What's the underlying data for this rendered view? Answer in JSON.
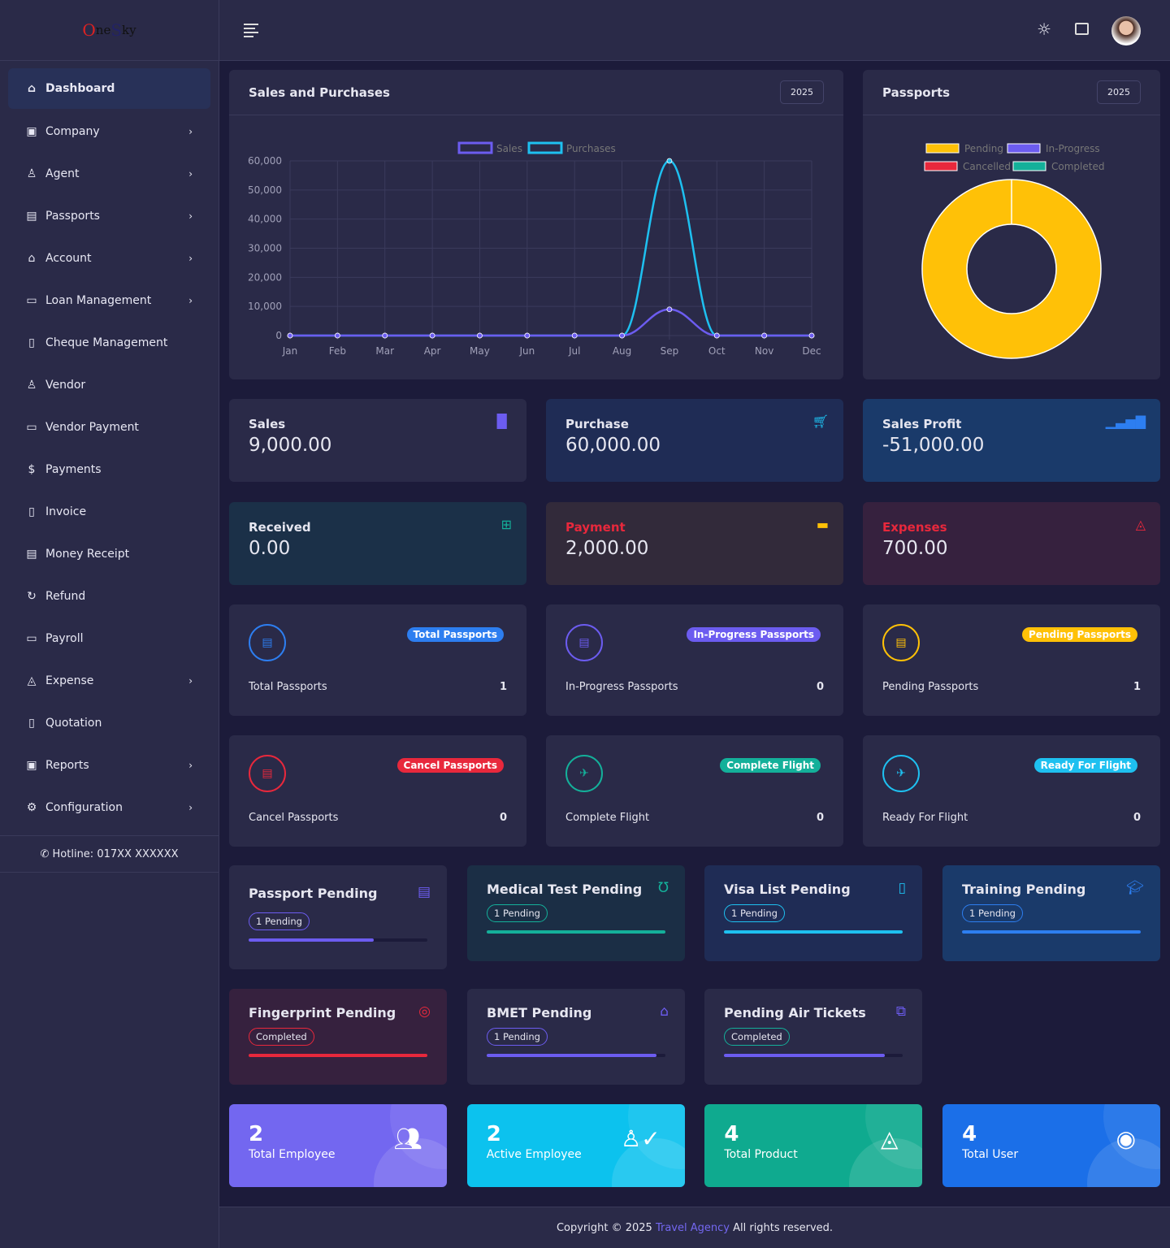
{
  "logo": "OneSky",
  "sidebar": {
    "items": [
      {
        "label": "Dashboard",
        "icon": "home-icon",
        "glyph": "⌂",
        "chev": false
      },
      {
        "label": "Company",
        "icon": "briefcase-icon",
        "glyph": "▣",
        "chev": true
      },
      {
        "label": "Agent",
        "icon": "user-icon",
        "glyph": "♙",
        "chev": true
      },
      {
        "label": "Passports",
        "icon": "passport-icon",
        "glyph": "▤",
        "chev": true
      },
      {
        "label": "Account",
        "icon": "bank-icon",
        "glyph": "⌂",
        "chev": true
      },
      {
        "label": "Loan Management",
        "icon": "money-icon",
        "glyph": "▭",
        "chev": true
      },
      {
        "label": "Cheque Management",
        "icon": "document-icon",
        "glyph": "▯",
        "chev": false
      },
      {
        "label": "Vendor",
        "icon": "users-icon",
        "glyph": "♙",
        "chev": false
      },
      {
        "label": "Vendor Payment",
        "icon": "money-icon",
        "glyph": "▭",
        "chev": false
      },
      {
        "label": "Payments",
        "icon": "dollar-icon",
        "glyph": "$",
        "chev": false
      },
      {
        "label": "Invoice",
        "icon": "document-icon",
        "glyph": "▯",
        "chev": false
      },
      {
        "label": "Money Receipt",
        "icon": "receipt-icon",
        "glyph": "▤",
        "chev": false
      },
      {
        "label": "Refund",
        "icon": "refresh-icon",
        "glyph": "↻",
        "chev": false
      },
      {
        "label": "Payroll",
        "icon": "wallet-icon",
        "glyph": "▭",
        "chev": false
      },
      {
        "label": "Expense",
        "icon": "bag-icon",
        "glyph": "◬",
        "chev": true
      },
      {
        "label": "Quotation",
        "icon": "document-icon",
        "glyph": "▯",
        "chev": false
      },
      {
        "label": "Reports",
        "icon": "excel-icon",
        "glyph": "▣",
        "chev": true
      },
      {
        "label": "Configuration",
        "icon": "gear-icon",
        "glyph": "⚙",
        "chev": true
      }
    ],
    "hotline": "Hotline: 017XX XXXXXX"
  },
  "sales_chart": {
    "title": "Sales and Purchases",
    "year": "2025"
  },
  "passports_chart": {
    "title": "Passports",
    "year": "2025"
  },
  "chart_data": [
    {
      "type": "line",
      "categories": [
        "Jan",
        "Feb",
        "Mar",
        "Apr",
        "May",
        "Jun",
        "Jul",
        "Aug",
        "Sep",
        "Oct",
        "Nov",
        "Dec"
      ],
      "series": [
        {
          "name": "Sales",
          "color": "#6c5cf0",
          "values": [
            0,
            0,
            0,
            0,
            0,
            0,
            0,
            0,
            9000,
            0,
            0,
            0
          ]
        },
        {
          "name": "Purchases",
          "color": "#1ec0f0",
          "values": [
            0,
            0,
            0,
            0,
            0,
            0,
            0,
            0,
            60000,
            0,
            0,
            0
          ]
        }
      ],
      "ylim": [
        0,
        60000
      ],
      "yticks": [
        "0",
        "10,000",
        "20,000",
        "30,000",
        "40,000",
        "50,000",
        "60,000"
      ],
      "grid": true,
      "legend": "top"
    },
    {
      "type": "pie",
      "variant": "doughnut",
      "labels": [
        "Pending",
        "In-Progress",
        "Cancelled",
        "Completed"
      ],
      "colors": [
        "#ffc107",
        "#6c5cf0",
        "#e8283c",
        "#14b09a"
      ],
      "values": [
        1,
        0,
        0,
        0
      ],
      "legend": "top"
    }
  ],
  "stats": [
    {
      "title": "Sales",
      "value": "9,000.00",
      "icon": "bar-chart-icon",
      "glyph": "▐▌",
      "color": "#6c5cf0",
      "bg": "#2a2a48",
      "tcolor": "#e6e6f0"
    },
    {
      "title": "Purchase",
      "value": "60,000.00",
      "icon": "cart-icon",
      "glyph": "🛒︎",
      "color": "#1ec0f0",
      "bg": "#1f2c55",
      "tcolor": "#e6e6f0"
    },
    {
      "title": "Sales Profit",
      "value": "-51,000.00",
      "icon": "signal-icon",
      "glyph": "▁▃▅▇",
      "color": "#2d7ef0",
      "bg": "#1a3a6a",
      "tcolor": "#e6e6f0"
    },
    {
      "title": "Received",
      "value": "0.00",
      "icon": "gift-icon",
      "glyph": "⊞",
      "color": "#14b09a",
      "bg": "#1b3048",
      "tcolor": "#e6e6f0"
    },
    {
      "title": "Payment",
      "value": "2,000.00",
      "icon": "credit-card-icon",
      "glyph": "▬",
      "color": "#ffc107",
      "bg": "#322a3a",
      "tcolor": "#e8283c"
    },
    {
      "title": "Expenses",
      "value": "700.00",
      "icon": "shopping-bag-icon",
      "glyph": "◬",
      "color": "#e8283c",
      "bg": "#36213e",
      "tcolor": "#e8283c"
    }
  ],
  "passport_cards": [
    {
      "badge": "Total Passports",
      "label": "Total Passports",
      "count": "1",
      "color": "#2d7ef0",
      "icon": "passport-icon"
    },
    {
      "badge": "In-Progress Passports",
      "label": "In-Progress Passports",
      "count": "0",
      "color": "#6c5cf0",
      "icon": "passport-icon"
    },
    {
      "badge": "Pending Passports",
      "label": "Pending Passports",
      "count": "1",
      "color": "#ffc107",
      "icon": "passport-icon"
    },
    {
      "badge": "Cancel Passports",
      "label": "Cancel Passports",
      "count": "0",
      "color": "#e8283c",
      "icon": "passport-icon"
    },
    {
      "badge": "Complete Flight",
      "label": "Complete Flight",
      "count": "0",
      "color": "#14b09a",
      "icon": "plane-landing-icon"
    },
    {
      "badge": "Ready For Flight",
      "label": "Ready For Flight",
      "count": "0",
      "color": "#1ec0f0",
      "icon": "plane-takeoff-icon"
    }
  ],
  "pending": [
    {
      "title": "Passport Pending",
      "pill": "1 Pending",
      "progress": 70,
      "color": "#6c5cf0",
      "bg": "#2a2a48",
      "icon": "passport-icon",
      "glyph": "▤"
    },
    {
      "title": "Medical Test Pending",
      "pill": "1 Pending",
      "progress": 100,
      "color": "#14b09a",
      "bg": "#1b2e45",
      "icon": "stethoscope-icon",
      "glyph": "Ʊ"
    },
    {
      "title": "Visa List Pending",
      "pill": "1 Pending",
      "progress": 100,
      "color": "#1ec0f0",
      "bg": "#1f2c55",
      "icon": "file-icon",
      "glyph": "▯"
    },
    {
      "title": "Training Pending",
      "pill": "1 Pending",
      "progress": 100,
      "color": "#2d7ef0",
      "bg": "#1a3a6a",
      "icon": "graduation-cap-icon",
      "glyph": "🎓︎"
    },
    {
      "title": "Fingerprint Pending",
      "pill": "Completed",
      "progress": 100,
      "color": "#e8283c",
      "bg": "#36213e",
      "icon": "fingerprint-icon",
      "glyph": "◎"
    },
    {
      "title": "BMET Pending",
      "pill": "1 Pending",
      "progress": 95,
      "color": "#6c5cf0",
      "bg": "#2a2a48",
      "icon": "bank-icon",
      "glyph": "⌂"
    },
    {
      "title": "Pending Air Tickets",
      "pill": "Completed",
      "progress": 90,
      "color": "#6c5cf0",
      "bg": "#2a2a48",
      "icon": "tickets-icon",
      "glyph": "⧉",
      "pillcolor": "#14b09a"
    }
  ],
  "totals": [
    {
      "value": "2",
      "label": "Total Employee",
      "color": "#7367f0",
      "icon": "users-icon",
      "glyph": "👥︎"
    },
    {
      "value": "2",
      "label": "Active Employee",
      "color": "#0cc2ee",
      "icon": "user-check-icon",
      "glyph": "♙✓"
    },
    {
      "value": "4",
      "label": "Total Product",
      "color": "#0faa8f",
      "icon": "shopping-bag-icon",
      "glyph": "◬"
    },
    {
      "value": "4",
      "label": "Total User",
      "color": "#1b6fe8",
      "icon": "user-circle-icon",
      "glyph": "◉"
    }
  ],
  "footer": {
    "prefix": "Copyright © 2025",
    "link": "Travel Agency",
    "suffix": "All rights reserved."
  }
}
